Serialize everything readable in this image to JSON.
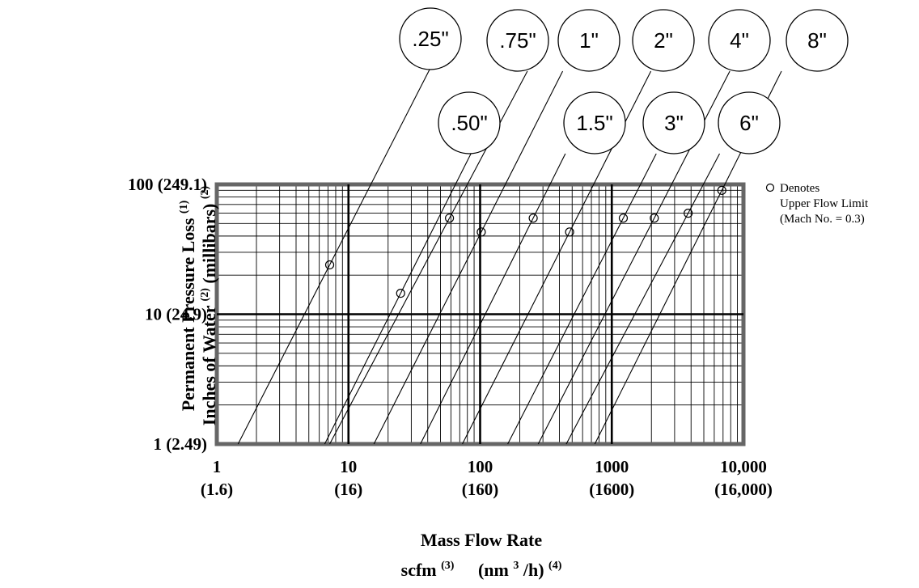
{
  "chart_data": {
    "type": "line",
    "title": "",
    "xscale": "log",
    "yscale": "log",
    "xlim": [
      1,
      10000
    ],
    "ylim": [
      1,
      100
    ],
    "grid": true,
    "x_ticks": [
      {
        "value": 1,
        "label": "1",
        "sublabel": "(1.6)"
      },
      {
        "value": 10,
        "label": "10",
        "sublabel": "(16)"
      },
      {
        "value": 100,
        "label": "100",
        "sublabel": "(160)"
      },
      {
        "value": 1000,
        "label": "1000",
        "sublabel": "(1600)"
      },
      {
        "value": 10000,
        "label": "10,000",
        "sublabel": "(16,000)"
      }
    ],
    "y_ticks": [
      {
        "value": 1,
        "label": "1 (2.49)"
      },
      {
        "value": 10,
        "label": "10 (24.9)"
      },
      {
        "value": 100,
        "label": "100 (249.1)"
      }
    ],
    "ylabel_line1": {
      "text": "Permanent Pressure Loss",
      "sup": "(1)"
    },
    "ylabel_line2": {
      "text1": "Inches of Water",
      "sup1": "(2)",
      "text2": "(millibars)",
      "sup2": "(2)"
    },
    "xlabel_line1": "Mass Flow Rate",
    "xlabel_line2": {
      "t1": "scfm",
      "s1": "(3)",
      "t2": "(nm",
      "s2": "3",
      "t3": "/h)",
      "s3": "(4)"
    },
    "legend": {
      "symbol": "circle",
      "lines": [
        "Denotes",
        "Upper Flow Limit",
        "(Mach No. = 0.3)"
      ],
      "placement": "right"
    },
    "series": [
      {
        "name": ".25\"",
        "x": [
          1.45,
          7.2
        ],
        "y": [
          1,
          24
        ],
        "limit": [
          7.2,
          24
        ]
      },
      {
        "name": ".50\"",
        "x": [
          6.6,
          24.9
        ],
        "y": [
          1,
          14.5
        ],
        "limit": [
          24.9,
          14.5
        ]
      },
      {
        "name": ".75\"",
        "x": [
          7.2,
          58.5
        ],
        "y": [
          1,
          55
        ],
        "limit": [
          58.5,
          55
        ]
      },
      {
        "name": "1\"",
        "x": [
          15.6,
          102
        ],
        "y": [
          1,
          43
        ],
        "limit": [
          102,
          43
        ]
      },
      {
        "name": "1.5\"",
        "x": [
          35.2,
          253
        ],
        "y": [
          1,
          55
        ],
        "limit": [
          253,
          55
        ]
      },
      {
        "name": "2\"",
        "x": [
          73.3,
          478
        ],
        "y": [
          1,
          43
        ],
        "limit": [
          478,
          43
        ]
      },
      {
        "name": "3\"",
        "x": [
          162,
          1223
        ],
        "y": [
          1,
          55
        ],
        "limit": [
          1223,
          55
        ]
      },
      {
        "name": "4\"",
        "x": [
          276,
          2103
        ],
        "y": [
          1,
          55
        ],
        "limit": [
          2103,
          55
        ]
      },
      {
        "name": "6\"",
        "x": [
          451,
          3802
        ],
        "y": [
          1,
          60
        ],
        "limit": [
          3802,
          60
        ]
      },
      {
        "name": "8\"",
        "x": [
          743,
          6850
        ],
        "y": [
          1,
          90
        ],
        "limit": [
          6850,
          90
        ]
      }
    ]
  }
}
